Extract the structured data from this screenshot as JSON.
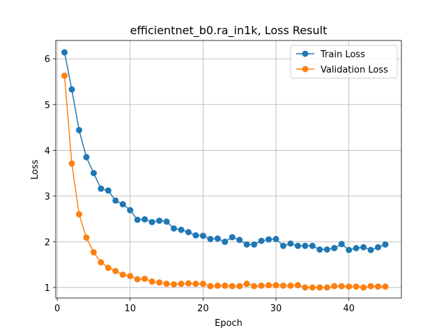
{
  "chart_data": {
    "type": "line",
    "title": "efficientnet_b0.ra_in1k, Loss Result",
    "xlabel": "Epoch",
    "ylabel": "Loss",
    "xlim": [
      -0.2,
      47.2
    ],
    "ylim": [
      0.77,
      6.4
    ],
    "xticks": [
      0,
      10,
      20,
      30,
      40
    ],
    "yticks": [
      1,
      2,
      3,
      4,
      5,
      6
    ],
    "grid": true,
    "legend_position": "top-right",
    "x": [
      1,
      2,
      3,
      4,
      5,
      6,
      7,
      8,
      9,
      10,
      11,
      12,
      13,
      14,
      15,
      16,
      17,
      18,
      19,
      20,
      21,
      22,
      23,
      24,
      25,
      26,
      27,
      28,
      29,
      30,
      31,
      32,
      33,
      34,
      35,
      36,
      37,
      38,
      39,
      40,
      41,
      42,
      43,
      44,
      45
    ],
    "series": [
      {
        "name": "Train Loss",
        "color": "#1f77b4",
        "values": [
          6.14,
          5.33,
          4.44,
          3.85,
          3.5,
          3.16,
          3.12,
          2.9,
          2.82,
          2.69,
          2.48,
          2.49,
          2.43,
          2.46,
          2.44,
          2.29,
          2.26,
          2.21,
          2.14,
          2.13,
          2.06,
          2.07,
          2.0,
          2.1,
          2.04,
          1.94,
          1.94,
          2.02,
          2.05,
          2.06,
          1.91,
          1.96,
          1.91,
          1.91,
          1.91,
          1.83,
          1.83,
          1.86,
          1.95,
          1.82,
          1.86,
          1.88,
          1.82,
          1.88,
          1.94
        ]
      },
      {
        "name": "Validation Loss",
        "color": "#ff7f0e",
        "values": [
          5.63,
          3.71,
          2.6,
          2.09,
          1.77,
          1.55,
          1.43,
          1.36,
          1.28,
          1.25,
          1.18,
          1.19,
          1.13,
          1.11,
          1.08,
          1.07,
          1.08,
          1.09,
          1.08,
          1.08,
          1.03,
          1.04,
          1.04,
          1.03,
          1.03,
          1.08,
          1.03,
          1.04,
          1.05,
          1.05,
          1.04,
          1.04,
          1.05,
          1.0,
          1.0,
          1.0,
          1.0,
          1.03,
          1.03,
          1.02,
          1.02,
          1.0,
          1.03,
          1.02,
          1.02
        ]
      }
    ]
  }
}
